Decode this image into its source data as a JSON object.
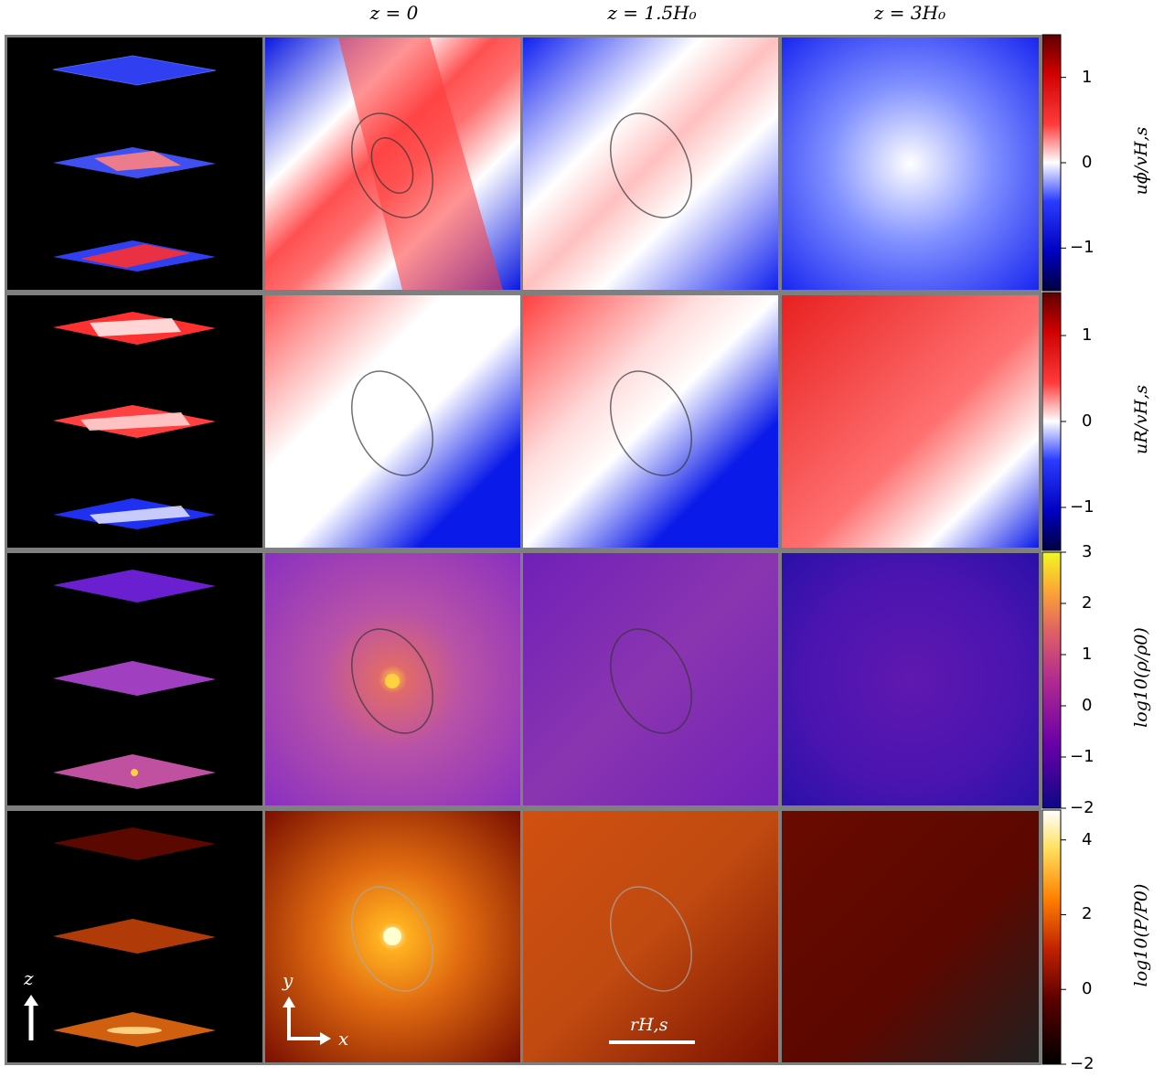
{
  "column_titles": [
    "z = 0",
    "z = 1.5H₀",
    "z = 3H₀"
  ],
  "rows": [
    {
      "name": "u_phi",
      "colorbar_label": "uϕ/vH,s",
      "ticks": [
        "1",
        "0",
        "−1"
      ],
      "tick_values": [
        1,
        0,
        -1
      ],
      "range": [
        -1.5,
        1.5
      ],
      "colormap": "seismic"
    },
    {
      "name": "u_R",
      "colorbar_label": "uR/vH,s",
      "ticks": [
        "1",
        "0",
        "−1"
      ],
      "tick_values": [
        1,
        0,
        -1
      ],
      "range": [
        -1.5,
        1.5
      ],
      "colormap": "seismic"
    },
    {
      "name": "density",
      "colorbar_label": "log10(ρ/ρ0)",
      "ticks": [
        "3",
        "2",
        "1",
        "0",
        "−1",
        "−2"
      ],
      "tick_values": [
        3,
        2,
        1,
        0,
        -1,
        -2
      ],
      "range": [
        -2,
        3
      ],
      "colormap": "plasma"
    },
    {
      "name": "pressure",
      "colorbar_label": "log10(P/P0)",
      "ticks": [
        "4",
        "2",
        "0",
        "−2"
      ],
      "tick_values": [
        4,
        2,
        0,
        -2
      ],
      "range": [
        -2,
        4.8
      ],
      "colormap": "hot"
    }
  ],
  "axis_labels": {
    "y": "y",
    "x": "x",
    "z": "z"
  },
  "scale_bar_label": "rH,s",
  "colors": {
    "frame": "#7f7f7f",
    "red": "#d7191c",
    "blue": "#0a14e6",
    "white": "#ffffff"
  }
}
